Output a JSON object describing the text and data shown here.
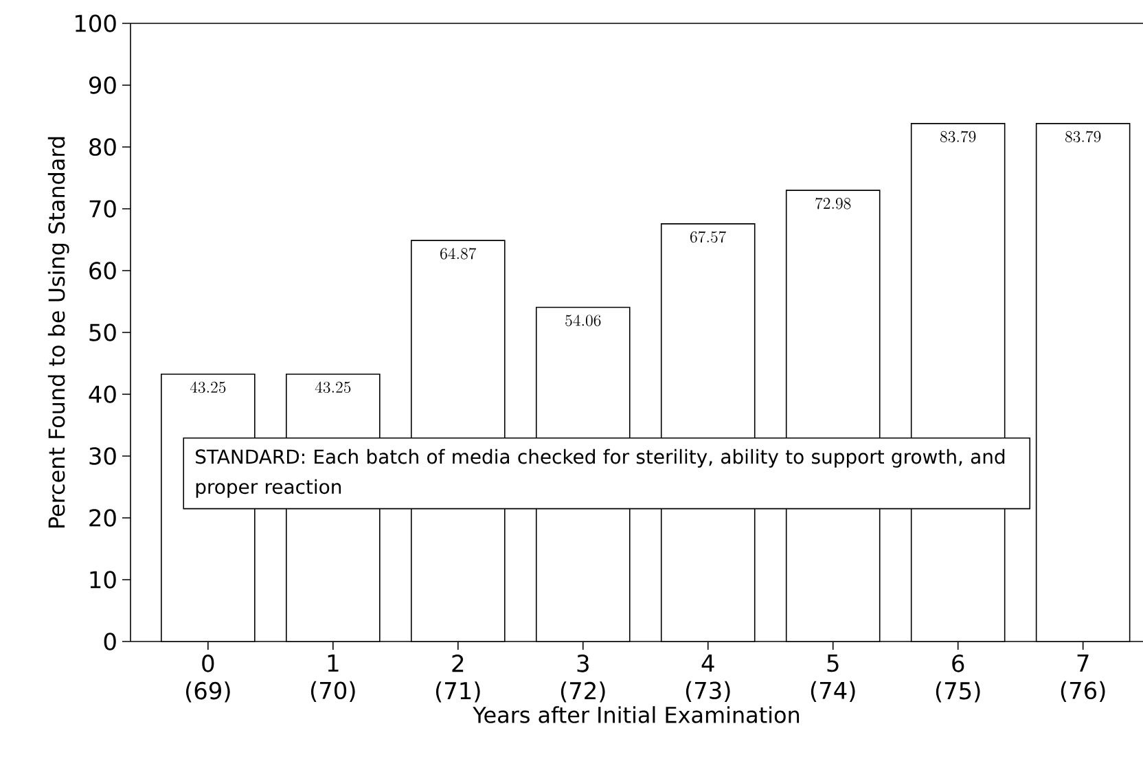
{
  "chart_data": {
    "type": "bar",
    "xlabel": "Years after Initial Examination",
    "ylabel": "Percent Found to be Using Standard",
    "categories": [
      "0 (69)",
      "1 (70)",
      "2 (71)",
      "3 (72)",
      "4 (73)",
      "5 (74)",
      "6 (75)",
      "7 (76)"
    ],
    "values": [
      43.25,
      43.25,
      64.87,
      54.06,
      67.57,
      72.98,
      83.79,
      83.79
    ],
    "color": "#ffffff",
    "ylim": [
      0,
      100
    ],
    "yticks": [
      0,
      10,
      20,
      30,
      40,
      50,
      60,
      70,
      80,
      90,
      100
    ],
    "data_labels": true,
    "grid": false,
    "annotations": [
      "STANDARD: Each batch of media checked for sterility, ability to support growth, and proper reaction"
    ]
  }
}
